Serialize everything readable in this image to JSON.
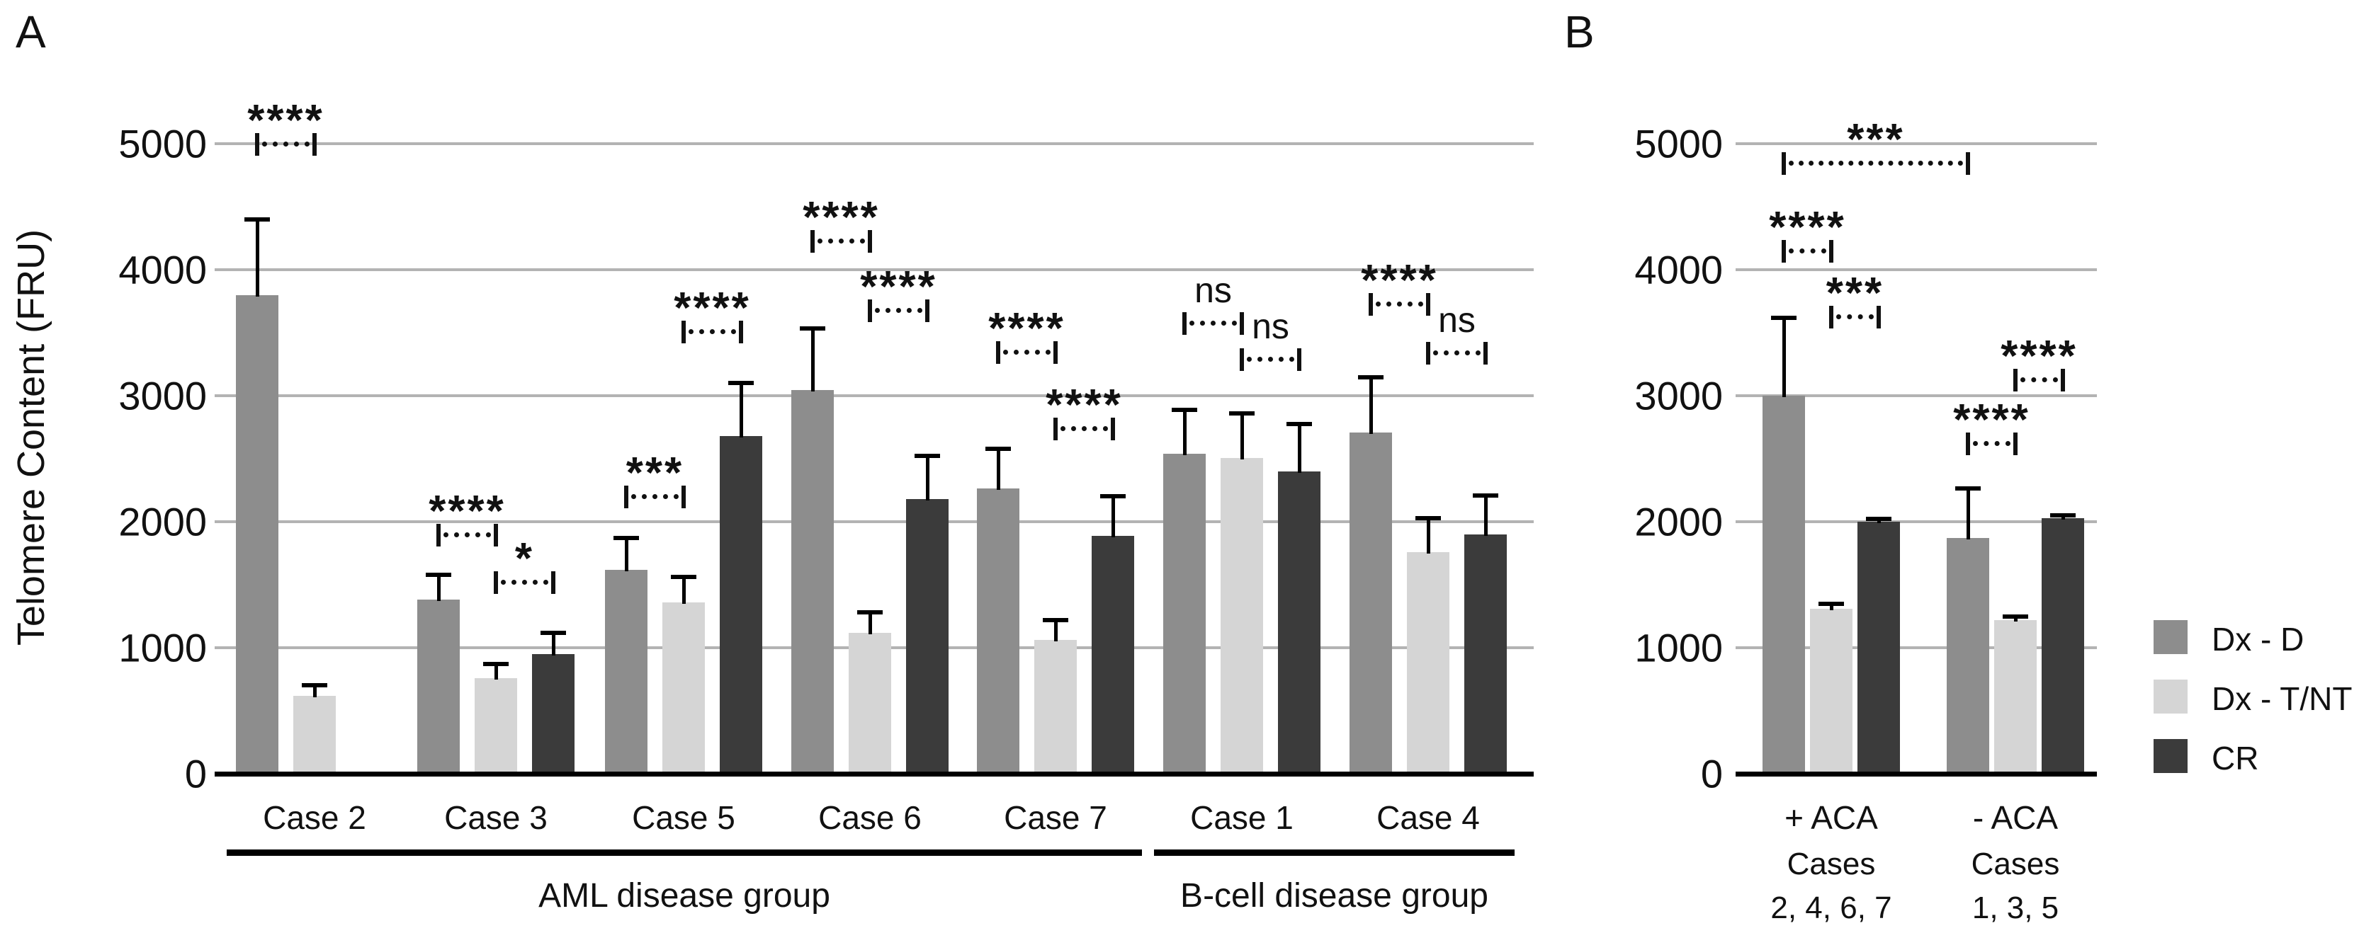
{
  "chart_data": {
    "type": "bar",
    "title": "",
    "ylabel": "Telomere  Content (FRU)",
    "ylim": [
      0,
      5000
    ],
    "grid": "horizontal",
    "legend_position": "right-bottom",
    "legend": [
      {
        "label": "Dx - D",
        "color": "#8d8d8d"
      },
      {
        "label": "Dx - T/NT",
        "color": "#d5d5d5"
      },
      {
        "label": "CR",
        "color": "#3b3b3b"
      }
    ],
    "colors": {
      "grid": "#b3b3b3",
      "axis": "#000000",
      "text": "#111111"
    },
    "panels": [
      {
        "letter": "A",
        "yticks": [
          0,
          1000,
          2000,
          3000,
          4000,
          5000
        ],
        "series": [
          "Dx - D",
          "Dx - T/NT",
          "CR"
        ],
        "groups": [
          {
            "label": "Case 2",
            "values": [
              3800,
              620,
              null
            ],
            "errors": [
              600,
              85,
              null
            ]
          },
          {
            "label": "Case 3",
            "values": [
              1380,
              760,
              950
            ],
            "errors": [
              200,
              110,
              170
            ]
          },
          {
            "label": "Case 5",
            "values": [
              1620,
              1360,
              2680
            ],
            "errors": [
              250,
              200,
              420
            ]
          },
          {
            "label": "Case 6",
            "values": [
              3045,
              1120,
              2180
            ],
            "errors": [
              490,
              160,
              340
            ]
          },
          {
            "label": "Case 7",
            "values": [
              2265,
              1060,
              1890
            ],
            "errors": [
              315,
              160,
              310
            ]
          },
          {
            "label": "Case 1",
            "values": [
              2540,
              2505,
              2400
            ],
            "errors": [
              350,
              355,
              375
            ]
          },
          {
            "label": "Case 4",
            "values": [
              2710,
              1760,
              1900
            ],
            "errors": [
              435,
              270,
              310
            ]
          }
        ],
        "sections": [
          {
            "label": "AML disease group",
            "from": 0,
            "to": 4
          },
          {
            "label": "B-cell disease group",
            "from": 5,
            "to": 6
          }
        ],
        "markers": [
          {
            "label": "****",
            "g1": 0,
            "s1": 0,
            "g2": 0,
            "s2": 1,
            "y": 5000
          },
          {
            "label": "****",
            "g1": 1,
            "s1": 0,
            "g2": 1,
            "s2": 1,
            "y": 1900
          },
          {
            "label": "*",
            "g1": 1,
            "s1": 1,
            "g2": 1,
            "s2": 2,
            "y": 1520
          },
          {
            "label": "***",
            "g1": 2,
            "s1": 0,
            "g2": 2,
            "s2": 1,
            "y": 2200
          },
          {
            "label": "****",
            "g1": 2,
            "s1": 1,
            "g2": 2,
            "s2": 2,
            "y": 3510
          },
          {
            "label": "****",
            "g1": 3,
            "s1": 0,
            "g2": 3,
            "s2": 1,
            "y": 4230
          },
          {
            "label": "****",
            "g1": 3,
            "s1": 1,
            "g2": 3,
            "s2": 2,
            "y": 3680
          },
          {
            "label": "****",
            "g1": 4,
            "s1": 0,
            "g2": 4,
            "s2": 1,
            "y": 3350
          },
          {
            "label": "****",
            "g1": 4,
            "s1": 1,
            "g2": 4,
            "s2": 2,
            "y": 2740
          },
          {
            "label": "ns",
            "g1": 5,
            "s1": 0,
            "g2": 5,
            "s2": 1,
            "y": 3580
          },
          {
            "label": "ns",
            "g1": 5,
            "s1": 1,
            "g2": 5,
            "s2": 2,
            "y": 3290
          },
          {
            "label": "****",
            "g1": 6,
            "s1": 0,
            "g2": 6,
            "s2": 1,
            "y": 3730
          },
          {
            "label": "ns",
            "g1": 6,
            "s1": 1,
            "g2": 6,
            "s2": 2,
            "y": 3340
          }
        ]
      },
      {
        "letter": "B",
        "yticks": [
          0,
          1000,
          2000,
          3000,
          4000,
          5000
        ],
        "series": [
          "Dx - D",
          "Dx - T/NT",
          "CR"
        ],
        "groups": [
          {
            "label": "+ ACA",
            "sublabels": [
              "Cases",
              "2, 4, 6, 7"
            ],
            "values": [
              3000,
              1310,
              2000
            ],
            "errors": [
              620,
              40,
              25
            ]
          },
          {
            "label": "- ACA",
            "sublabels": [
              "Cases",
              "1, 3, 5"
            ],
            "values": [
              1870,
              1220,
              2030
            ],
            "errors": [
              395,
              25,
              20
            ]
          }
        ],
        "sections": [],
        "markers": [
          {
            "label": "***",
            "g1": 0,
            "s1": 0,
            "g2": 1,
            "s2": 0,
            "y": 4850
          },
          {
            "label": "****",
            "g1": 0,
            "s1": 0,
            "g2": 0,
            "s2": 1,
            "y": 4150
          },
          {
            "label": "***",
            "g1": 0,
            "s1": 1,
            "g2": 0,
            "s2": 2,
            "y": 3630
          },
          {
            "label": "****",
            "g1": 1,
            "s1": 1,
            "g2": 1,
            "s2": 2,
            "y": 3130
          },
          {
            "label": "****",
            "g1": 1,
            "s1": 0,
            "g2": 1,
            "s2": 1,
            "y": 2625
          }
        ]
      }
    ]
  }
}
